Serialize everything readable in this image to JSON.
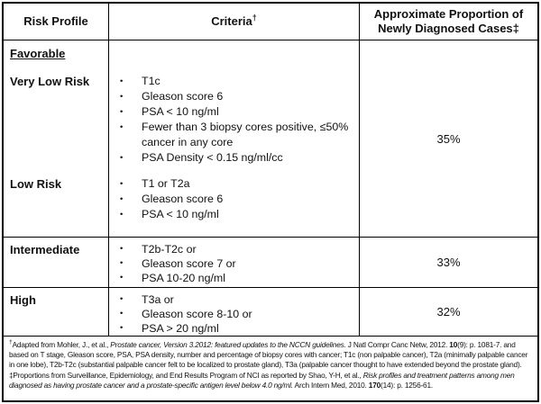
{
  "icons": {
    "bullet": "•"
  },
  "colors": {
    "border": "#000000",
    "text": "#111111",
    "background": "#ffffff"
  },
  "table": {
    "header": {
      "col1": "Risk Profile",
      "col2": "Criteria",
      "col2_sup": "†",
      "col3": "Approximate Proportion of Newly Diagnosed Cases‡"
    },
    "favorable": {
      "section_label": "Favorable",
      "proportion": "35%",
      "subgroups": [
        {
          "label": "Very Low Risk",
          "bullets": [
            "T1c",
            "Gleason score 6",
            "PSA < 10 ng/ml",
            "Fewer than 3 biopsy cores positive, ≤50%\ncancer in any core",
            "PSA Density < 0.15 ng/ml/cc"
          ]
        },
        {
          "label": "Low Risk",
          "bullets": [
            "T1 or T2a",
            "Gleason score 6",
            "PSA < 10 ng/ml"
          ]
        }
      ]
    },
    "intermediate": {
      "label": "Intermediate",
      "proportion": "33%",
      "bullets": [
        "T2b-T2c or",
        "Gleason score 7 or",
        "PSA 10-20 ng/ml"
      ]
    },
    "high": {
      "label": "High",
      "proportion": "32%",
      "bullets": [
        "T3a or",
        "Gleason score 8-10 or",
        "PSA > 20 ng/ml"
      ]
    }
  },
  "footnotes": {
    "note1": {
      "marker": "†",
      "seg1": "Adapted  from Mohler, J., et al., ",
      "seg2_italic": "Prostate cancer, Version 3.2012: featured updates to the NCCN guidelines.",
      "seg3": " J Natl Compr Canc Netw, 2012. ",
      "seg4_bold": "10",
      "seg5": "(9): p. 1081-7.  and based on T stage, Gleason score, PSA, PSA density, number and percentage of biopsy cores with cancer; T1c (non palpable cancer), T2a (minimally palpable cancer in one lobe), T2b-T2c (substantial palpable cancer felt to be localized to prostate gland), T3a (palpable cancer thought to have extended beyond the prostate gland)."
    },
    "note2": {
      "seg1": "‡Proportions from Surveillance, Epidemiology, and End Results Program of NCI as reported by Shao, Y-H, et al., ",
      "seg2_italic": "Risk profiles and treatment patterns among men diagnosed as having prostate cancer and a prostate-specific antigen level below 4.0 ng/ml.",
      "seg3": " Arch Intern Med, 2010. ",
      "seg4_bold": "170",
      "seg5": "(14): p. 1256-61."
    }
  }
}
